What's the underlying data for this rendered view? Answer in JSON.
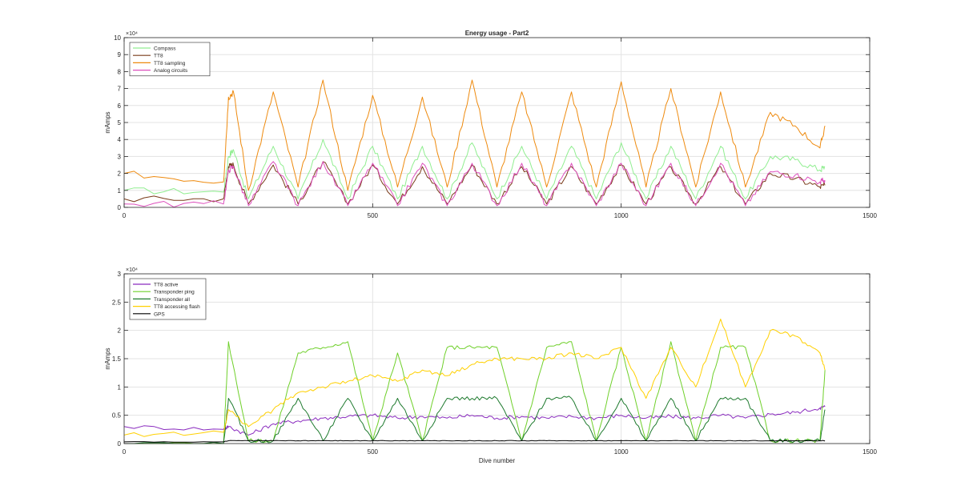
{
  "figure": {
    "title": "Energy usage - Part2"
  },
  "chart_data": [
    {
      "type": "line",
      "title": "Energy usage - Part2",
      "xlabel": "",
      "ylabel": "mAmps",
      "xlim": [
        0,
        1500
      ],
      "ylim": [
        0,
        100000
      ],
      "xticks": [
        "0",
        "500",
        "1000",
        "1500"
      ],
      "yticks": [
        "0",
        "1",
        "2",
        "3",
        "4",
        "5",
        "6",
        "7",
        "8",
        "9",
        "10"
      ],
      "y_exponent_label": "×10⁴",
      "grid": true,
      "legend_position": "top-left",
      "series": [
        {
          "name": "Compass",
          "color": "#90ee90"
        },
        {
          "name": "TT8",
          "color": "#7a3b1a"
        },
        {
          "name": "TT8 sampling",
          "color": "#ee8a0e"
        },
        {
          "name": "Analog circuits",
          "color": "#dd4fbd"
        }
      ],
      "x": [
        0,
        200,
        210,
        220,
        250,
        300,
        350,
        400,
        450,
        500,
        550,
        600,
        650,
        700,
        750,
        800,
        850,
        900,
        950,
        1000,
        1050,
        1100,
        1150,
        1200,
        1250,
        1300,
        1350,
        1400,
        1410
      ],
      "values": {
        "Compass": [
          10000,
          9000,
          30000,
          34000,
          5000,
          36000,
          5000,
          40000,
          5000,
          36000,
          5000,
          36000,
          5000,
          38000,
          5000,
          36000,
          5000,
          36000,
          5000,
          38000,
          5000,
          36000,
          5000,
          36000,
          5000,
          30000,
          28000,
          22000,
          24000
        ],
        "TT8": [
          5000,
          5000,
          24000,
          25000,
          2000,
          25000,
          2000,
          27000,
          2000,
          25000,
          2000,
          24000,
          2000,
          25000,
          2000,
          24000,
          2000,
          24000,
          2000,
          25000,
          2000,
          24000,
          2000,
          24000,
          2000,
          20000,
          17000,
          12000,
          13000
        ],
        "TT8 sampling": [
          20000,
          15000,
          65000,
          68000,
          10000,
          68000,
          12000,
          75000,
          10000,
          66000,
          12000,
          65000,
          12000,
          75000,
          12000,
          68000,
          12000,
          68000,
          12000,
          74000,
          12000,
          70000,
          12000,
          68000,
          12000,
          56000,
          48000,
          35000,
          48000
        ],
        "Analog circuits": [
          2000,
          2000,
          22000,
          24000,
          1000,
          27000,
          1000,
          27000,
          1000,
          26000,
          1000,
          26000,
          1000,
          26000,
          1000,
          26000,
          1000,
          26000,
          1000,
          26000,
          1000,
          26000,
          1000,
          26000,
          1000,
          21000,
          19000,
          15000,
          16000
        ]
      }
    },
    {
      "type": "line",
      "title": "",
      "xlabel": "Dive number",
      "ylabel": "mAmps",
      "xlim": [
        0,
        1500
      ],
      "ylim": [
        0,
        30000
      ],
      "xticks": [
        "0",
        "500",
        "1000",
        "1500"
      ],
      "yticks": [
        "0",
        "0.5",
        "1",
        "1.5",
        "2",
        "2.5",
        "3"
      ],
      "y_exponent_label": "×10⁴",
      "grid": true,
      "legend_position": "top-left",
      "series": [
        {
          "name": "TT8 active",
          "color": "#8a2bbf"
        },
        {
          "name": "Transponder ping",
          "color": "#6fd02a"
        },
        {
          "name": "Transponder all",
          "color": "#1e7a2e"
        },
        {
          "name": "TT8 accessing flash",
          "color": "#ffd000"
        },
        {
          "name": "GPS",
          "color": "#000000"
        }
      ],
      "x": [
        0,
        200,
        210,
        250,
        300,
        350,
        400,
        450,
        500,
        550,
        600,
        650,
        700,
        750,
        800,
        850,
        900,
        950,
        1000,
        1050,
        1100,
        1150,
        1200,
        1250,
        1300,
        1350,
        1400,
        1410
      ],
      "values": {
        "TT8 active": [
          3000,
          2500,
          3000,
          1500,
          3500,
          4000,
          4500,
          4800,
          5000,
          4500,
          4800,
          4500,
          5000,
          4500,
          4800,
          4500,
          4800,
          4500,
          5000,
          4500,
          4800,
          4500,
          5000,
          4500,
          5200,
          5500,
          6300,
          6500
        ],
        "Transponder ping": [
          0,
          0,
          18000,
          500,
          500,
          16000,
          17000,
          18000,
          500,
          16000,
          500,
          17000,
          17000,
          17000,
          500,
          17000,
          18000,
          500,
          17000,
          500,
          18000,
          500,
          17000,
          17000,
          500,
          500,
          500,
          13000
        ],
        "Transponder all": [
          0,
          0,
          8000,
          500,
          500,
          8000,
          500,
          8000,
          500,
          8000,
          500,
          8000,
          8000,
          8000,
          500,
          8000,
          8000,
          500,
          8000,
          500,
          8000,
          500,
          8000,
          8000,
          500,
          500,
          500,
          6000
        ],
        "TT8 accessing flash": [
          1500,
          2000,
          6000,
          3000,
          6000,
          9000,
          10000,
          11000,
          12000,
          11000,
          13000,
          12000,
          14000,
          15000,
          15000,
          15000,
          16000,
          15000,
          17000,
          8000,
          17000,
          10000,
          22000,
          10000,
          20000,
          19000,
          16000,
          13000
        ],
        "GPS": [
          300,
          300,
          500,
          500,
          500,
          500,
          500,
          500,
          500,
          500,
          500,
          500,
          500,
          500,
          500,
          500,
          500,
          500,
          500,
          500,
          500,
          500,
          500,
          500,
          500,
          500,
          500,
          500
        ]
      }
    }
  ]
}
